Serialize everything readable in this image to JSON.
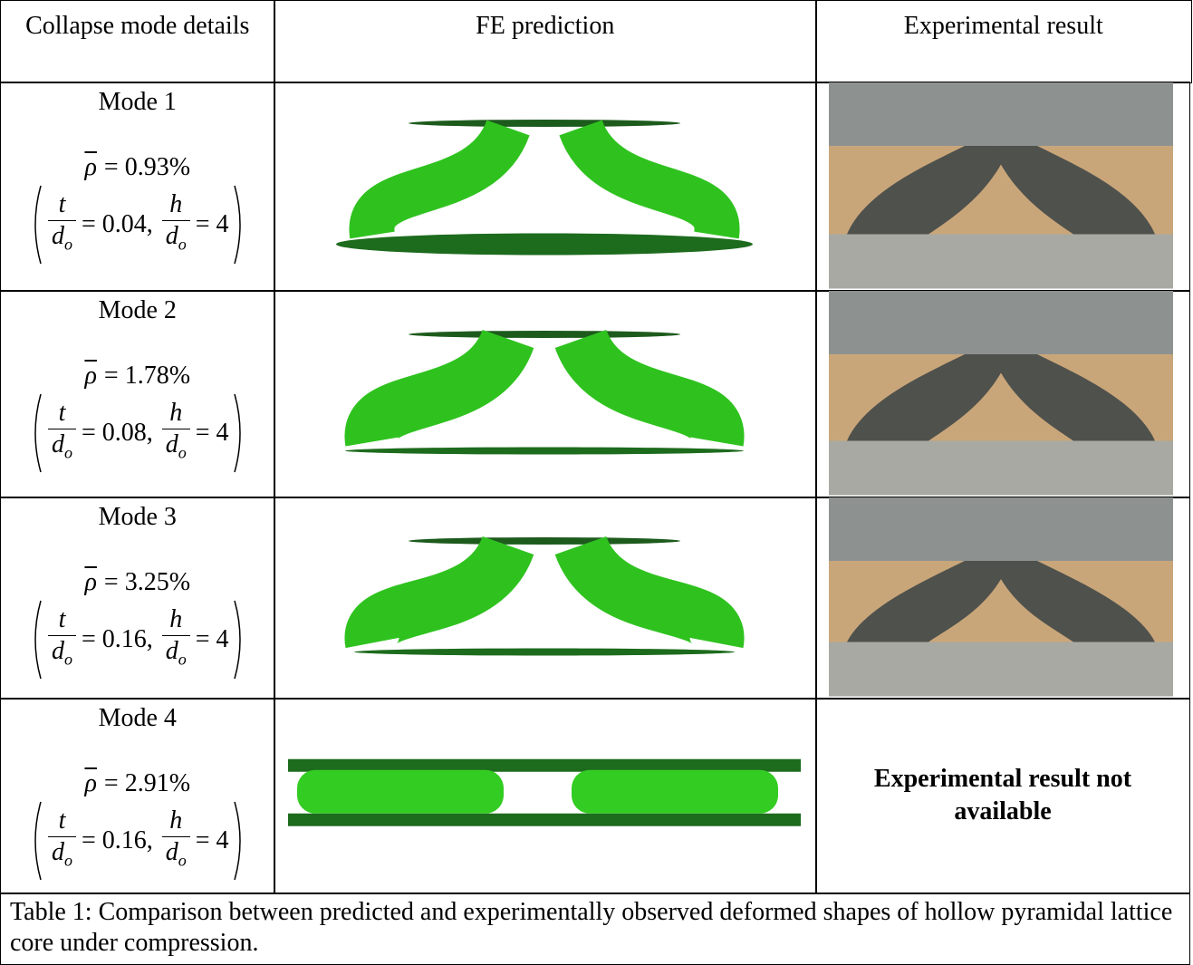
{
  "header": {
    "columns": [
      "Collapse mode details",
      "FE prediction",
      "Experimental result"
    ]
  },
  "table": {
    "rows": [
      {
        "mode": "Mode 1",
        "density": {
          "symbol": "ρ",
          "rhs": "= 0.93%"
        },
        "ratios": [
          {
            "num": "t",
            "den": "d",
            "sub": "o",
            "rhs": "= 0.04,"
          },
          {
            "num": "h",
            "den": "d",
            "sub": "o",
            "rhs": "= 4"
          }
        ]
      },
      {
        "mode": "Mode 2",
        "density": {
          "symbol": "ρ",
          "rhs": "= 1.78%"
        },
        "ratios": [
          {
            "num": "t",
            "den": "d",
            "sub": "o",
            "rhs": "= 0.08,"
          },
          {
            "num": "h",
            "den": "d",
            "sub": "o",
            "rhs": "= 4"
          }
        ]
      },
      {
        "mode": "Mode 3",
        "density": {
          "symbol": "ρ",
          "rhs": "= 3.25%"
        },
        "ratios": [
          {
            "num": "t",
            "den": "d",
            "sub": "o",
            "rhs": "= 0.16,"
          },
          {
            "num": "h",
            "den": "d",
            "sub": "o",
            "rhs": "= 4"
          }
        ]
      },
      {
        "mode": "Mode 4",
        "density": {
          "symbol": "ρ",
          "rhs": "= 2.91%"
        },
        "ratios": [
          {
            "num": "t",
            "den": "d",
            "sub": "o",
            "rhs": "= 0.16,"
          },
          {
            "num": "h",
            "den": "d",
            "sub": "o",
            "rhs": "= 4"
          }
        ],
        "experimental": "Experimental result not available"
      }
    ]
  },
  "caption": "Table 1: Comparison between predicted and experimentally observed deformed shapes of hollow pyramidal lattice core under compression."
}
